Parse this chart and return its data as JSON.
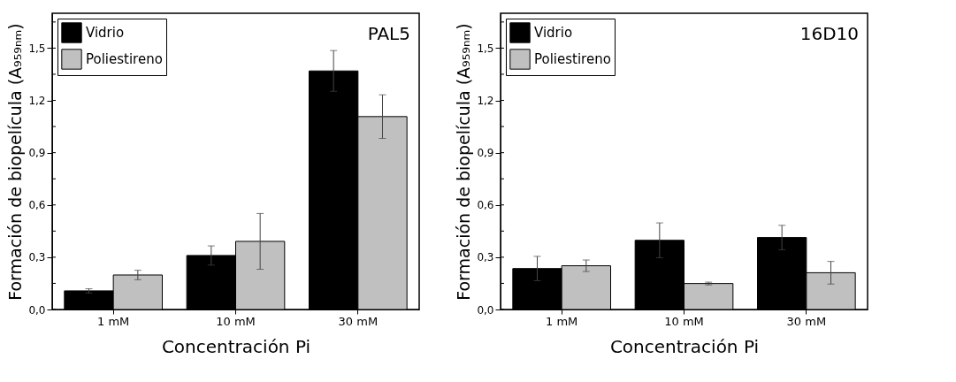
{
  "chart_data": [
    {
      "type": "bar",
      "title": "PAL5",
      "xlabel": "Concentración Pi",
      "ylabel": "Formación de biopelícula (A₉₅₉ₙₘ)",
      "categories": [
        "1 mM",
        "10 mM",
        "30 mM"
      ],
      "legend": "top left",
      "series": [
        {
          "name": "Vidrio",
          "color": "#000000",
          "values": [
            0.107,
            0.31,
            1.369
          ],
          "errors": [
            0.012,
            0.055,
            0.117
          ]
        },
        {
          "name": "Poliestireno",
          "color": "#c0c0c0",
          "values": [
            0.198,
            0.391,
            1.107
          ],
          "errors": [
            0.027,
            0.16,
            0.125
          ]
        }
      ],
      "ylim": [
        0,
        1.7
      ],
      "yticks": [
        {
          "value": 0,
          "label": "0,0"
        },
        {
          "value": 0.15,
          "label": null
        },
        {
          "value": 0.3,
          "label": "0,3"
        },
        {
          "value": 0.45,
          "label": null
        },
        {
          "value": 0.6,
          "label": "0,6"
        },
        {
          "value": 0.75,
          "label": null
        },
        {
          "value": 0.9,
          "label": "0,9"
        },
        {
          "value": 1.05,
          "label": null
        },
        {
          "value": 1.2,
          "label": "1,2"
        },
        {
          "value": 1.35,
          "label": null
        },
        {
          "value": 1.5,
          "label": "1,5"
        },
        {
          "value": 1.65,
          "label": null
        }
      ],
      "grid": false
    },
    {
      "type": "bar",
      "title": "16D10",
      "xlabel": "Concentración Pi",
      "ylabel": "Formación de biopelícula (A₉₅₉ₙₘ)",
      "categories": [
        "1 mM",
        "10 mM",
        "30 mM"
      ],
      "legend": "top left",
      "series": [
        {
          "name": "Vidrio",
          "color": "#000000",
          "values": [
            0.235,
            0.397,
            0.413
          ],
          "errors": [
            0.07,
            0.1,
            0.07
          ]
        },
        {
          "name": "Poliestireno",
          "color": "#c0c0c0",
          "values": [
            0.251,
            0.149,
            0.211
          ],
          "errors": [
            0.033,
            0.008,
            0.065
          ]
        }
      ],
      "ylim": [
        0,
        1.7
      ],
      "yticks": [
        {
          "value": 0,
          "label": "0,0"
        },
        {
          "value": 0.15,
          "label": null
        },
        {
          "value": 0.3,
          "label": "0,3"
        },
        {
          "value": 0.45,
          "label": null
        },
        {
          "value": 0.6,
          "label": "0,6"
        },
        {
          "value": 0.75,
          "label": null
        },
        {
          "value": 0.9,
          "label": "0,9"
        },
        {
          "value": 1.05,
          "label": null
        },
        {
          "value": 1.2,
          "label": "1,2"
        },
        {
          "value": 1.35,
          "label": null
        },
        {
          "value": 1.5,
          "label": "1,5"
        },
        {
          "value": 1.65,
          "label": null
        }
      ],
      "grid": false
    }
  ]
}
